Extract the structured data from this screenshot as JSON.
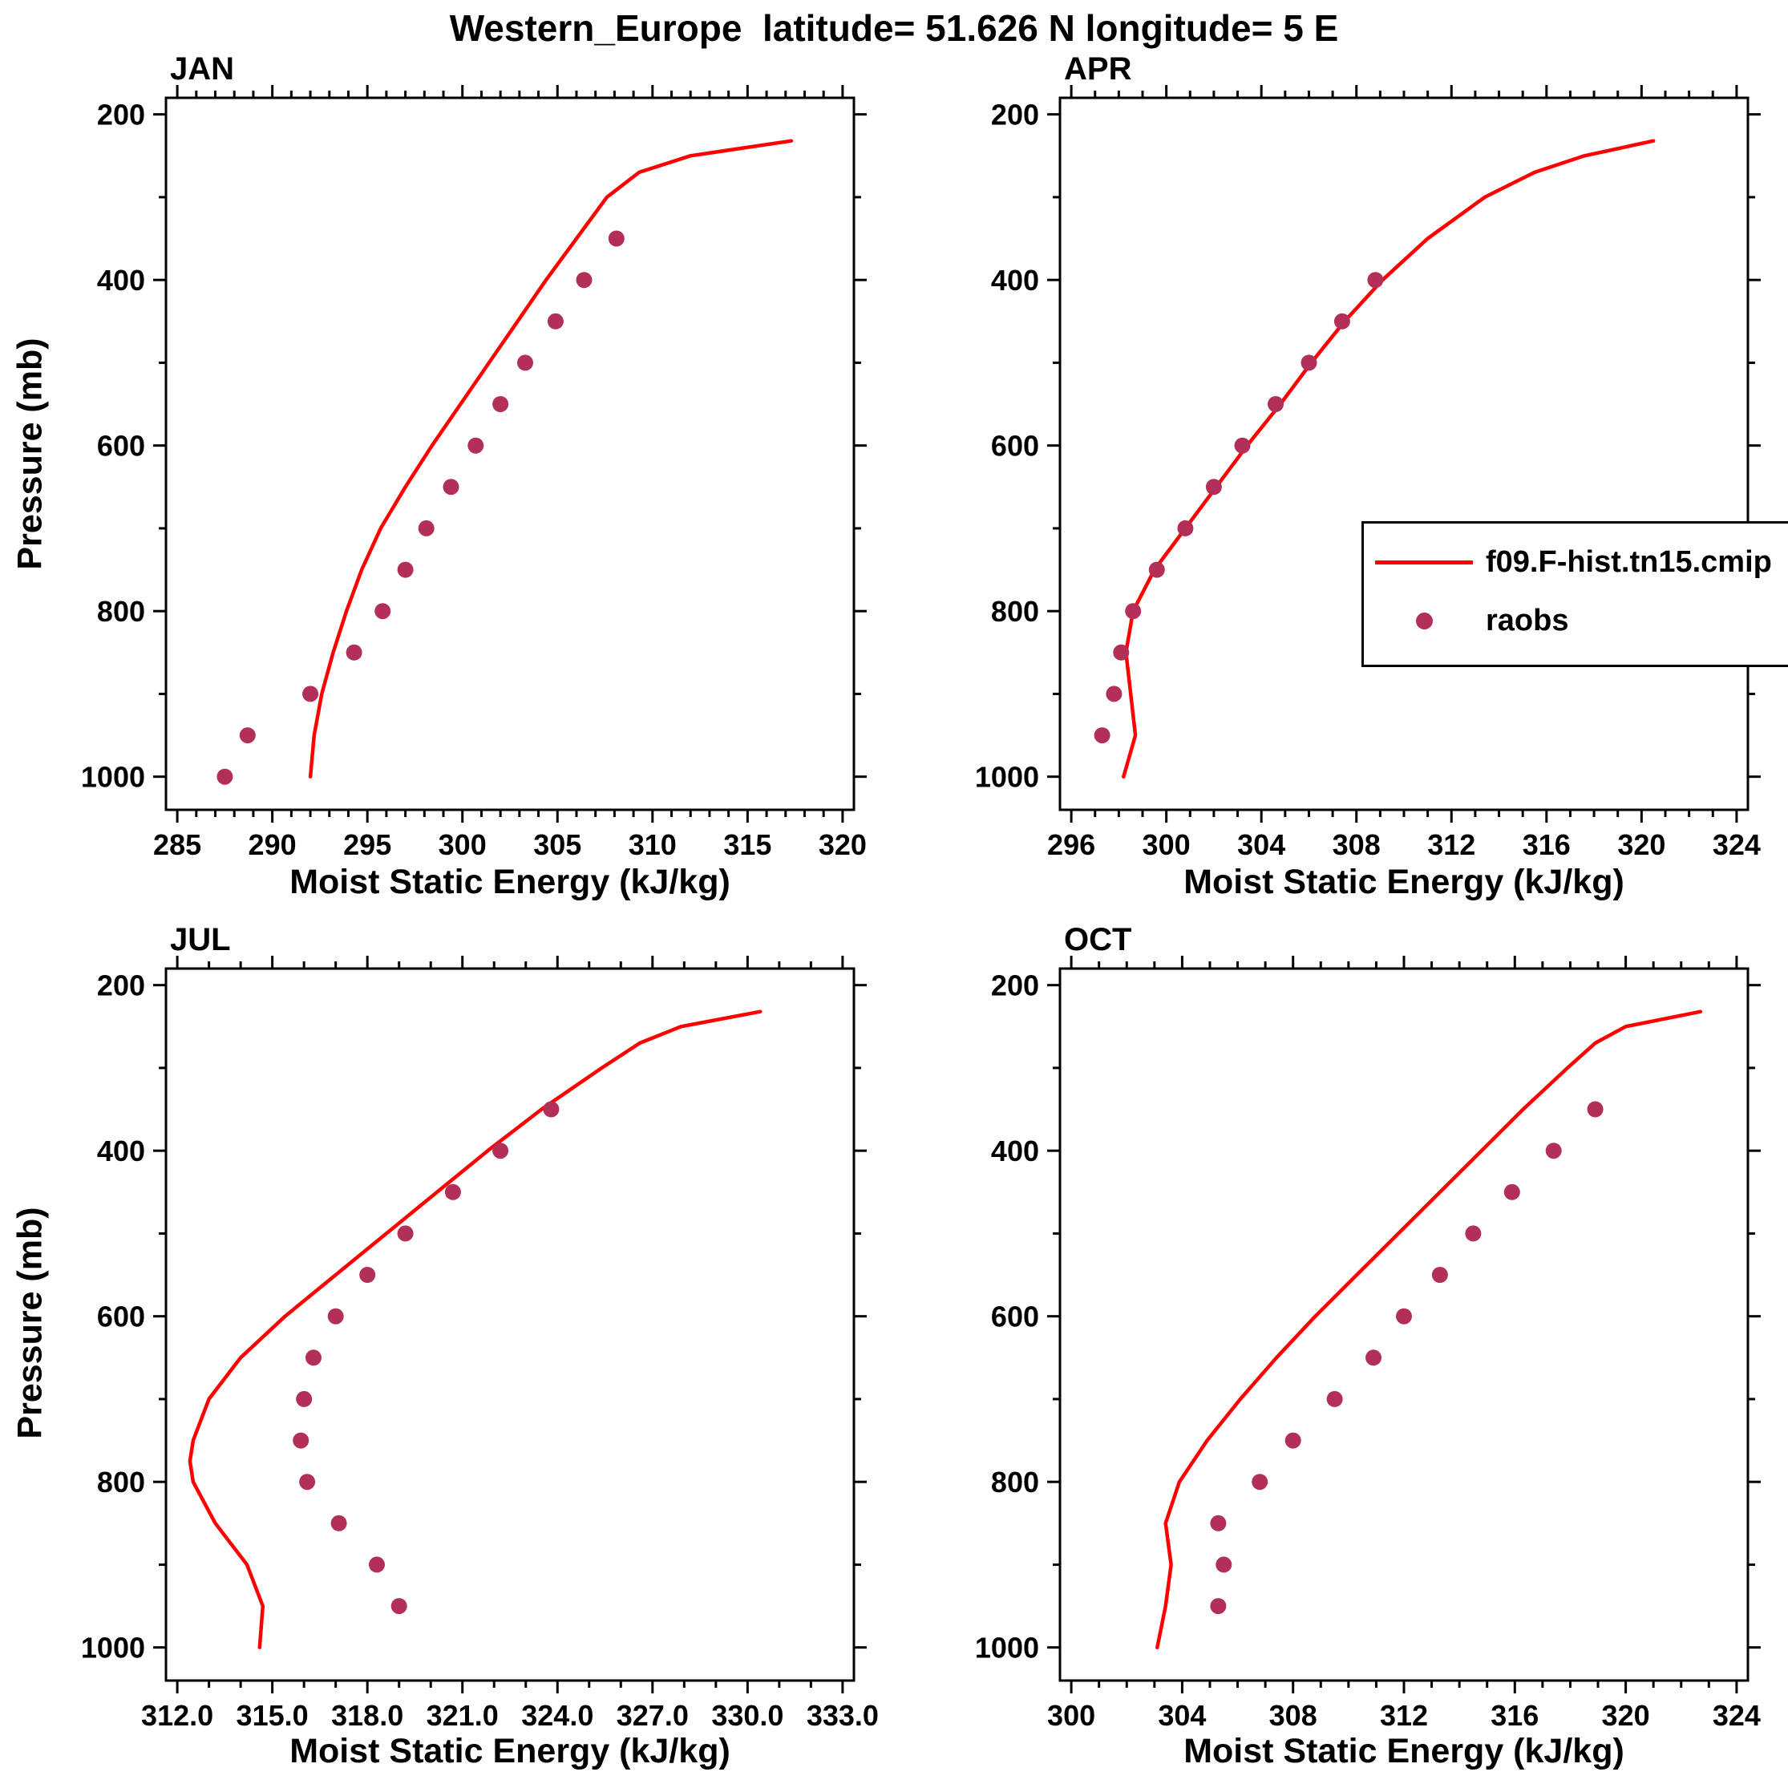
{
  "title": "Western_Europe  latitude= 51.626 N longitude= 5 E",
  "legend": {
    "line_label": "f09.F-hist.tn15.cmip",
    "dot_label": "raobs"
  },
  "colors": {
    "line": "#ff0000",
    "dots": "#b23058",
    "frame": "#000000",
    "text": "#000000"
  },
  "chart_data": [
    {
      "type": "line",
      "panel": "JAN",
      "xlabel": "Moist Static Energy (kJ/kg)",
      "ylabel": "Pressure (mb)",
      "xlim": [
        285,
        320
      ],
      "xticks": [
        285,
        290,
        295,
        300,
        305,
        310,
        315,
        320
      ],
      "xtick_labels": [
        "285",
        "290",
        "295",
        "300",
        "305",
        "310",
        "315",
        "320"
      ],
      "x_minor_step": 1,
      "ylim": [
        200,
        1000
      ],
      "y_axis_reversed": true,
      "yticks": [
        200,
        400,
        600,
        800,
        1000
      ],
      "ytick_labels": [
        "200",
        "400",
        "600",
        "800",
        "1000"
      ],
      "yticks_minor": [
        300,
        500,
        700,
        900
      ],
      "series": [
        {
          "name": "f09.F-hist.tn15.cmip",
          "style": "line",
          "pressure": [
            1000,
            950,
            900,
            850,
            800,
            750,
            700,
            650,
            600,
            550,
            500,
            450,
            400,
            350,
            300,
            270,
            250,
            232
          ],
          "mse": [
            292.0,
            292.2,
            292.6,
            293.2,
            293.9,
            294.7,
            295.7,
            297.0,
            298.4,
            299.9,
            301.4,
            302.9,
            304.4,
            306.0,
            307.6,
            309.3,
            312.0,
            317.3
          ]
        },
        {
          "name": "raobs",
          "style": "dots",
          "pressure": [
            1000,
            950,
            900,
            850,
            800,
            750,
            700,
            650,
            600,
            550,
            500,
            450,
            400,
            350
          ],
          "mse": [
            287.5,
            288.7,
            292.0,
            294.3,
            295.8,
            297.0,
            298.1,
            299.4,
            300.7,
            302.0,
            303.3,
            304.9,
            306.4,
            308.1
          ]
        }
      ]
    },
    {
      "type": "line",
      "panel": "APR",
      "xlabel": "Moist Static Energy (kJ/kg)",
      "ylabel": "Pressure (mb)",
      "xlim": [
        296,
        324
      ],
      "xticks": [
        296,
        300,
        304,
        308,
        312,
        316,
        320,
        324
      ],
      "xtick_labels": [
        "296",
        "300",
        "304",
        "308",
        "312",
        "316",
        "320",
        "324"
      ],
      "x_minor_step": 1,
      "ylim": [
        200,
        1000
      ],
      "y_axis_reversed": true,
      "yticks": [
        200,
        400,
        600,
        800,
        1000
      ],
      "ytick_labels": [
        "200",
        "400",
        "600",
        "800",
        "1000"
      ],
      "yticks_minor": [
        300,
        500,
        700,
        900
      ],
      "series": [
        {
          "name": "f09.F-hist.tn15.cmip",
          "style": "line",
          "pressure": [
            1000,
            950,
            900,
            850,
            800,
            750,
            700,
            650,
            600,
            550,
            500,
            450,
            400,
            350,
            300,
            270,
            250,
            232
          ],
          "mse": [
            298.2,
            298.7,
            298.5,
            298.3,
            298.6,
            299.5,
            300.8,
            302.1,
            303.4,
            304.8,
            306.1,
            307.5,
            309.1,
            311.0,
            313.4,
            315.5,
            317.6,
            320.5
          ]
        },
        {
          "name": "raobs",
          "style": "dots",
          "pressure": [
            950,
            900,
            850,
            800,
            750,
            700,
            650,
            600,
            550,
            500,
            450,
            400
          ],
          "mse": [
            297.3,
            297.8,
            298.1,
            298.6,
            299.6,
            300.8,
            302.0,
            303.2,
            304.6,
            306.0,
            307.4,
            308.8
          ]
        }
      ]
    },
    {
      "type": "line",
      "panel": "JUL",
      "xlabel": "Moist Static Energy (kJ/kg)",
      "ylabel": "Pressure (mb)",
      "xlim": [
        312,
        333
      ],
      "xticks": [
        312,
        315,
        318,
        321,
        324,
        327,
        330,
        333
      ],
      "xtick_labels": [
        "312.0",
        "315.0",
        "318.0",
        "321.0",
        "324.0",
        "327.0",
        "330.0",
        "333.0"
      ],
      "x_minor_step": 1,
      "ylim": [
        200,
        1000
      ],
      "y_axis_reversed": true,
      "yticks": [
        200,
        400,
        600,
        800,
        1000
      ],
      "ytick_labels": [
        "200",
        "400",
        "600",
        "800",
        "1000"
      ],
      "yticks_minor": [
        300,
        500,
        700,
        900
      ],
      "series": [
        {
          "name": "f09.F-hist.tn15.cmip",
          "style": "line",
          "pressure": [
            1000,
            950,
            900,
            850,
            800,
            775,
            750,
            700,
            650,
            600,
            550,
            500,
            450,
            400,
            350,
            300,
            270,
            250,
            232
          ],
          "mse": [
            314.6,
            314.7,
            314.2,
            313.2,
            312.5,
            312.4,
            312.5,
            313.0,
            314.0,
            315.4,
            317.0,
            318.6,
            320.2,
            321.8,
            323.5,
            325.4,
            326.6,
            327.9,
            330.4
          ]
        },
        {
          "name": "raobs",
          "style": "dots",
          "pressure": [
            950,
            900,
            850,
            800,
            750,
            700,
            650,
            600,
            550,
            500,
            450,
            400,
            350
          ],
          "mse": [
            319.0,
            318.3,
            317.1,
            316.1,
            315.9,
            316.0,
            316.3,
            317.0,
            318.0,
            319.2,
            320.7,
            322.2,
            323.8
          ]
        }
      ]
    },
    {
      "type": "line",
      "panel": "OCT",
      "xlabel": "Moist Static Energy (kJ/kg)",
      "ylabel": "Pressure (mb)",
      "xlim": [
        300,
        324
      ],
      "xticks": [
        300,
        304,
        308,
        312,
        316,
        320,
        324
      ],
      "xtick_labels": [
        "300",
        "304",
        "308",
        "312",
        "316",
        "320",
        "324"
      ],
      "x_minor_step": 1,
      "ylim": [
        200,
        1000
      ],
      "y_axis_reversed": true,
      "yticks": [
        200,
        400,
        600,
        800,
        1000
      ],
      "ytick_labels": [
        "200",
        "400",
        "600",
        "800",
        "1000"
      ],
      "yticks_minor": [
        300,
        500,
        700,
        900
      ],
      "series": [
        {
          "name": "f09.F-hist.tn15.cmip",
          "style": "line",
          "pressure": [
            1000,
            950,
            900,
            850,
            800,
            750,
            700,
            650,
            600,
            550,
            500,
            450,
            400,
            350,
            300,
            270,
            250,
            232
          ],
          "mse": [
            303.1,
            303.4,
            303.6,
            303.4,
            303.9,
            304.9,
            306.1,
            307.4,
            308.8,
            310.3,
            311.8,
            313.3,
            314.8,
            316.3,
            317.9,
            318.9,
            320.0,
            322.7
          ]
        },
        {
          "name": "raobs",
          "style": "dots",
          "pressure": [
            950,
            900,
            850,
            800,
            750,
            700,
            650,
            600,
            550,
            500,
            450,
            400,
            350
          ],
          "mse": [
            305.3,
            305.5,
            305.3,
            306.8,
            308.0,
            309.5,
            310.9,
            312.0,
            313.3,
            314.5,
            315.9,
            317.4,
            318.9
          ]
        }
      ]
    }
  ]
}
